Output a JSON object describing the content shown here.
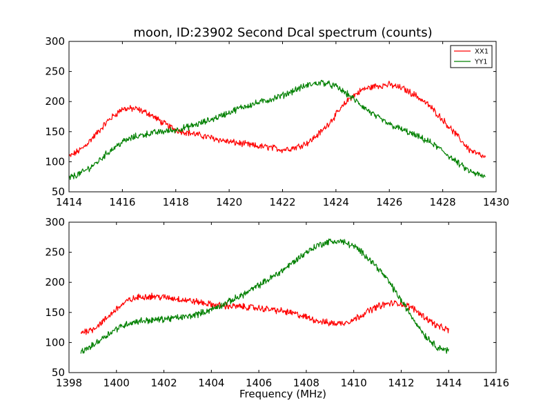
{
  "chart_data": [
    {
      "type": "line",
      "title": "moon, ID:23902 Second Dcal spectrum (counts)",
      "xlabel": "",
      "ylabel": "",
      "xlim": [
        1414,
        1430
      ],
      "ylim": [
        50,
        300
      ],
      "xticks": [
        "1414",
        "1416",
        "1418",
        "1420",
        "1422",
        "1424",
        "1426",
        "1428",
        "1430"
      ],
      "yticks": [
        "50",
        "100",
        "150",
        "200",
        "250",
        "300"
      ],
      "grid": false,
      "legend": "top-right",
      "series": [
        {
          "name": "XX1",
          "color": "#ff0000",
          "x": [
            1414.0,
            1414.5,
            1415.0,
            1415.5,
            1416.0,
            1416.5,
            1417.0,
            1417.5,
            1418.0,
            1418.5,
            1419.0,
            1419.5,
            1420.0,
            1420.5,
            1421.0,
            1421.5,
            1422.0,
            1422.5,
            1423.0,
            1423.5,
            1424.0,
            1424.5,
            1425.0,
            1425.5,
            1426.0,
            1426.5,
            1427.0,
            1427.5,
            1428.0,
            1428.5,
            1429.0,
            1429.6
          ],
          "y": [
            108,
            122,
            145,
            170,
            188,
            188,
            180,
            165,
            153,
            148,
            143,
            138,
            133,
            130,
            126,
            124,
            120,
            124,
            133,
            152,
            178,
            205,
            220,
            226,
            228,
            222,
            210,
            193,
            170,
            145,
            120,
            106
          ]
        },
        {
          "name": "YY1",
          "color": "#008000",
          "x": [
            1414.0,
            1414.5,
            1415.0,
            1415.5,
            1416.0,
            1416.5,
            1417.0,
            1417.5,
            1418.0,
            1418.5,
            1419.0,
            1419.5,
            1420.0,
            1420.5,
            1421.0,
            1421.5,
            1422.0,
            1422.5,
            1423.0,
            1423.5,
            1424.0,
            1424.5,
            1425.0,
            1425.5,
            1426.0,
            1426.5,
            1427.0,
            1427.5,
            1428.0,
            1428.5,
            1429.0,
            1429.6
          ],
          "y": [
            73,
            82,
            97,
            117,
            133,
            142,
            147,
            150,
            153,
            158,
            165,
            173,
            182,
            191,
            197,
            203,
            210,
            220,
            228,
            232,
            225,
            210,
            192,
            175,
            162,
            153,
            143,
            133,
            118,
            100,
            84,
            74
          ]
        }
      ]
    },
    {
      "type": "line",
      "title": "",
      "xlabel": "Frequency (MHz)",
      "ylabel": "",
      "xlim": [
        1398,
        1416
      ],
      "ylim": [
        50,
        300
      ],
      "xticks": [
        "1398",
        "1400",
        "1402",
        "1404",
        "1406",
        "1408",
        "1410",
        "1412",
        "1414",
        "1416"
      ],
      "yticks": [
        "50",
        "100",
        "150",
        "200",
        "250",
        "300"
      ],
      "grid": false,
      "series": [
        {
          "name": "XX1",
          "color": "#ff0000",
          "x": [
            1398.5,
            1399.0,
            1399.5,
            1400.0,
            1400.5,
            1401.0,
            1401.5,
            1402.0,
            1402.5,
            1403.0,
            1403.5,
            1404.0,
            1404.5,
            1405.0,
            1405.5,
            1406.0,
            1406.5,
            1407.0,
            1407.5,
            1408.0,
            1408.5,
            1409.0,
            1409.5,
            1410.0,
            1410.5,
            1411.0,
            1411.5,
            1412.0,
            1412.5,
            1413.0,
            1413.5,
            1414.0
          ],
          "y": [
            117,
            122,
            137,
            156,
            170,
            176,
            177,
            175,
            173,
            170,
            167,
            163,
            161,
            160,
            159,
            157,
            155,
            152,
            148,
            142,
            136,
            132,
            132,
            138,
            150,
            160,
            165,
            165,
            157,
            142,
            128,
            120
          ]
        },
        {
          "name": "YY1",
          "color": "#008000",
          "x": [
            1398.5,
            1399.0,
            1399.5,
            1400.0,
            1400.5,
            1401.0,
            1401.5,
            1402.0,
            1402.5,
            1403.0,
            1403.5,
            1404.0,
            1404.5,
            1405.0,
            1405.5,
            1406.0,
            1406.5,
            1407.0,
            1407.5,
            1408.0,
            1408.5,
            1409.0,
            1409.5,
            1410.0,
            1410.5,
            1411.0,
            1411.5,
            1412.0,
            1412.5,
            1413.0,
            1413.5,
            1414.0
          ],
          "y": [
            84,
            95,
            110,
            123,
            132,
            136,
            137,
            139,
            141,
            143,
            148,
            155,
            163,
            173,
            183,
            195,
            207,
            220,
            235,
            250,
            262,
            268,
            268,
            260,
            245,
            225,
            200,
            170,
            140,
            112,
            93,
            86
          ]
        }
      ]
    }
  ]
}
